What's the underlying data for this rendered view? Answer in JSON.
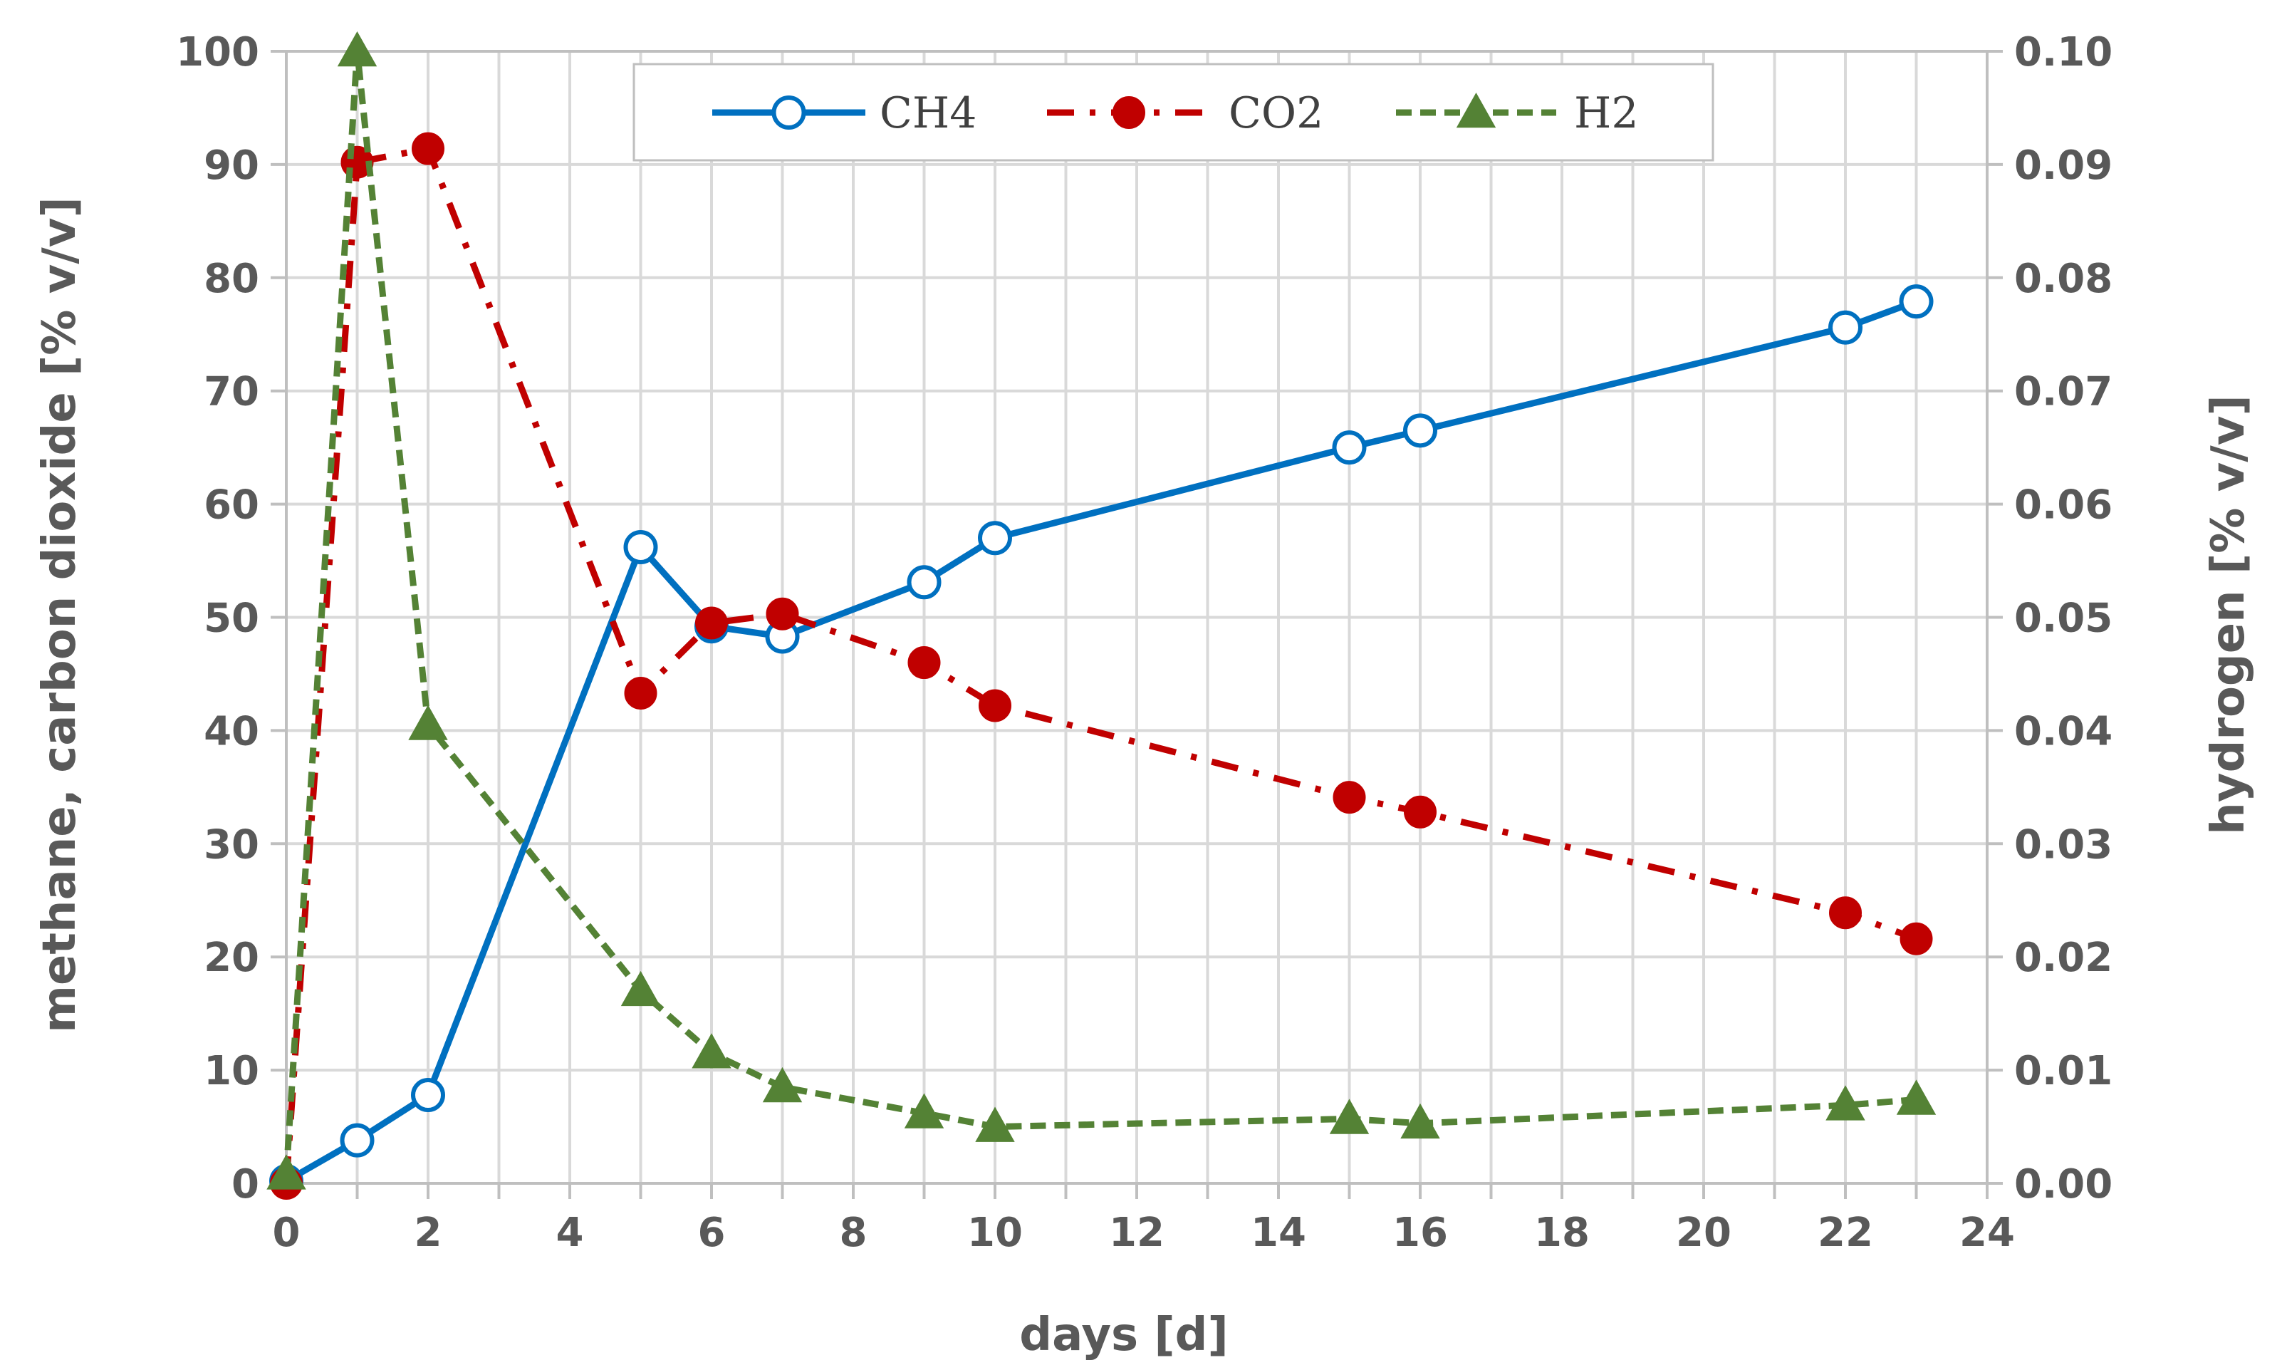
{
  "chart_data": {
    "type": "line",
    "title": "",
    "xlabel": "days [d]",
    "ylabel": "methane, carbon dioxide [% v/v]",
    "y2label": "hydrogen [% v/v]",
    "xlim": [
      0,
      24
    ],
    "ylim": [
      0,
      100
    ],
    "y2lim": [
      0,
      0.1
    ],
    "x_ticks": [
      "0",
      "2",
      "4",
      "6",
      "8",
      "10",
      "12",
      "14",
      "16",
      "18",
      "20",
      "22",
      "24"
    ],
    "y_ticks": [
      "0",
      "10",
      "20",
      "30",
      "40",
      "50",
      "60",
      "70",
      "80",
      "90",
      "100"
    ],
    "y2_ticks": [
      "0.00",
      "0.01",
      "0.02",
      "0.03",
      "0.04",
      "0.05",
      "0.06",
      "0.07",
      "0.08",
      "0.09",
      "0.10"
    ],
    "grid": true,
    "legend_position": "top-center",
    "series": [
      {
        "name": "CH4",
        "axis": "left",
        "color": "#0070C0",
        "line_style": "solid",
        "marker": "open-circle",
        "x": [
          0,
          1,
          2,
          5,
          6,
          7,
          9,
          10,
          15,
          16,
          22,
          23
        ],
        "values": [
          0.2,
          3.8,
          7.8,
          56.2,
          49.2,
          48.3,
          53.1,
          57.0,
          65.0,
          66.5,
          75.6,
          77.9
        ]
      },
      {
        "name": "CO2",
        "axis": "left",
        "color": "#C00000",
        "line_style": "dash-dot",
        "marker": "filled-circle",
        "x": [
          0,
          1,
          2,
          5,
          6,
          7,
          9,
          10,
          15,
          16,
          22,
          23
        ],
        "values": [
          0.0,
          90.2,
          91.4,
          43.3,
          49.5,
          50.3,
          46.0,
          42.2,
          34.1,
          32.8,
          23.9,
          21.6
        ]
      },
      {
        "name": "H2",
        "axis": "right",
        "color": "#548235",
        "line_style": "dashed",
        "marker": "filled-triangle",
        "x": [
          0,
          1,
          2,
          5,
          6,
          7,
          9,
          10,
          15,
          16,
          22,
          23
        ],
        "values": [
          0.0008,
          0.1,
          0.0405,
          0.017,
          0.0115,
          0.0085,
          0.0062,
          0.005,
          0.0057,
          0.0053,
          0.0069,
          0.0074
        ]
      }
    ]
  }
}
